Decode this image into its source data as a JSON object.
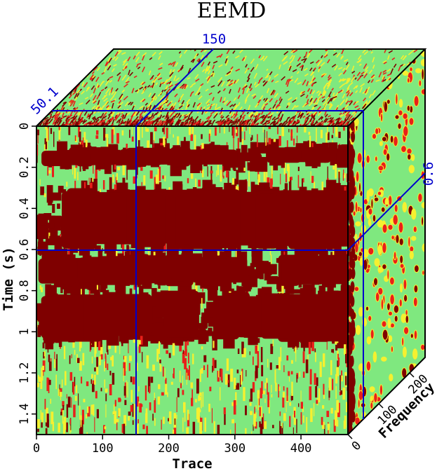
{
  "chart_data": {
    "type": "heatmap",
    "subtype": "3d-cube",
    "title": "EEMD",
    "xlabel": "Trace",
    "ylabel": "Time (s)",
    "zlabel": "Frequency",
    "x_ticks": [
      "0",
      "100",
      "200",
      "300",
      "400"
    ],
    "y_ticks": [
      "0",
      "0.2",
      "0.4",
      "0.6",
      "0.8",
      "1",
      "1.2",
      "1.4"
    ],
    "z_ticks": [
      "0",
      "100",
      "200"
    ],
    "xlim": [
      0,
      471
    ],
    "ylim": [
      0,
      1.5
    ],
    "zlim": [
      0,
      250
    ],
    "slice_trace": 150,
    "slice_time": 0.6,
    "slice_frequency": 50.1,
    "slice_labels": {
      "trace": "150",
      "time": "0.6",
      "frequency": "50.1"
    },
    "colors": {
      "background": "#7fe87f",
      "high": "#7f0000",
      "mid": "#e8201a",
      "low": "#f5f030",
      "slice_line": "#0000cc"
    },
    "high_energy_bands_s": [
      [
        0.1,
        0.2
      ],
      [
        0.3,
        0.6
      ],
      [
        0.62,
        0.78
      ],
      [
        0.8,
        1.05
      ]
    ]
  }
}
